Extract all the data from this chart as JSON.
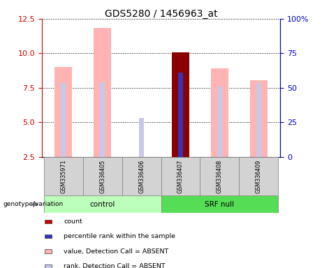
{
  "title": "GDS5280 / 1456963_at",
  "samples": [
    "GSM335971",
    "GSM336405",
    "GSM336406",
    "GSM336407",
    "GSM336408",
    "GSM336409"
  ],
  "ylim_left": [
    2.5,
    12.5
  ],
  "ylim_right": [
    0,
    100
  ],
  "yticks_left": [
    2.5,
    5.0,
    7.5,
    10.0,
    12.5
  ],
  "yticks_right": [
    0,
    25,
    50,
    75,
    100
  ],
  "value_bars": {
    "GSM335971": 9.0,
    "GSM336405": 11.85,
    "GSM336406": 2.2,
    "GSM336407": 10.05,
    "GSM336408": 8.9,
    "GSM336409": 8.05
  },
  "rank_bars": {
    "GSM335971": 7.85,
    "GSM336405": 7.9,
    "GSM336406": 5.3,
    "GSM336407": 8.6,
    "GSM336408": 7.6,
    "GSM336409": 7.85
  },
  "count_sample": "GSM336407",
  "count_value": 10.05,
  "blue_sample": "GSM336407",
  "blue_value": 8.6,
  "value_bar_color": "#FFB3B3",
  "rank_bar_color": "#C8C8E8",
  "count_bar_color": "#8B0000",
  "blue_bar_color": "#3333BB",
  "value_bar_width": 0.45,
  "rank_bar_width": 0.12,
  "sample_box_color": "#D3D3D3",
  "control_color": "#AAFFAA",
  "srf_color": "#66DD66",
  "legend_items": [
    {
      "label": "count",
      "color": "#CC0000"
    },
    {
      "label": "percentile rank within the sample",
      "color": "#3333BB"
    },
    {
      "label": "value, Detection Call = ABSENT",
      "color": "#FFB3B3"
    },
    {
      "label": "rank, Detection Call = ABSENT",
      "color": "#C8C8E8"
    }
  ],
  "left_axis_color": "#CC0000",
  "right_axis_color": "#0000CC",
  "ytick_fontsize": 8,
  "title_fontsize": 10
}
